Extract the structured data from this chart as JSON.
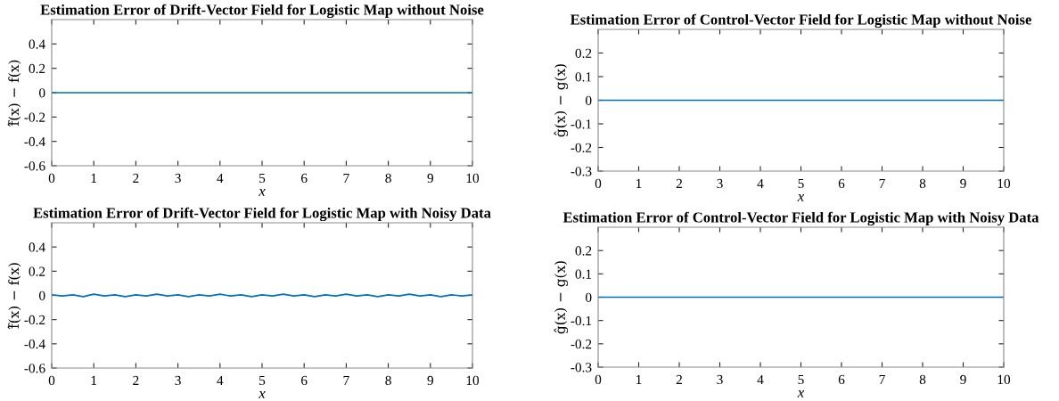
{
  "chart_data": [
    {
      "type": "line",
      "title": "Estimation Error of Drift-Vector Field for Logistic Map without Noise",
      "xlabel": "x",
      "ylabel": "f̂(x) − f(x)",
      "x": [
        0,
        10
      ],
      "series": [
        {
          "color": "#0072bd",
          "values": [
            0,
            0
          ]
        }
      ],
      "xlim": [
        0,
        10
      ],
      "xticks": [
        0,
        1,
        2,
        3,
        4,
        5,
        6,
        7,
        8,
        9,
        10
      ],
      "ylim": [
        -0.6,
        0.6
      ],
      "yticks": [
        -0.6,
        -0.4,
        -0.2,
        0,
        0.2,
        0.4
      ],
      "grid": false
    },
    {
      "type": "line",
      "title": "Estimation Error of Control-Vector Field for Logistic Map without Noise",
      "xlabel": "x",
      "ylabel": "ĝ(x) − g(x)",
      "x": [
        0,
        10
      ],
      "series": [
        {
          "color": "#0072bd",
          "values": [
            0,
            0
          ]
        }
      ],
      "xlim": [
        0,
        10
      ],
      "xticks": [
        0,
        1,
        2,
        3,
        4,
        5,
        6,
        7,
        8,
        9,
        10
      ],
      "ylim": [
        -0.3,
        0.3
      ],
      "yticks": [
        -0.3,
        -0.2,
        -0.1,
        0,
        0.1,
        0.2
      ],
      "grid": false
    },
    {
      "type": "line",
      "title": "Estimation Error of Drift-Vector Field for Logistic Map with Noisy Data",
      "xlabel": "x",
      "ylabel": "f̂(x) − f(x)",
      "x": [
        0,
        0.25,
        0.5,
        0.75,
        1,
        1.25,
        1.5,
        1.75,
        2,
        2.25,
        2.5,
        2.75,
        3,
        3.25,
        3.5,
        3.75,
        4,
        4.25,
        4.5,
        4.75,
        5,
        5.25,
        5.5,
        5.75,
        6,
        6.25,
        6.5,
        6.75,
        7,
        7.25,
        7.5,
        7.75,
        8,
        8.25,
        8.5,
        8.75,
        9,
        9.25,
        9.5,
        9.75,
        10
      ],
      "series": [
        {
          "color": "#0072bd",
          "values": [
            0.005,
            -0.005,
            0.005,
            -0.01,
            0.01,
            -0.005,
            0.005,
            -0.01,
            0.005,
            -0.005,
            0.01,
            -0.005,
            0.005,
            -0.01,
            0.005,
            -0.005,
            0.01,
            -0.005,
            0.005,
            -0.01,
            0.005,
            -0.005,
            0.01,
            -0.005,
            0.005,
            -0.01,
            0.005,
            -0.005,
            0.01,
            -0.005,
            0.005,
            -0.01,
            0.005,
            -0.005,
            0.01,
            -0.005,
            0.005,
            -0.01,
            0.005,
            -0.005,
            0.005
          ]
        }
      ],
      "xlim": [
        0,
        10
      ],
      "xticks": [
        0,
        1,
        2,
        3,
        4,
        5,
        6,
        7,
        8,
        9,
        10
      ],
      "ylim": [
        -0.6,
        0.6
      ],
      "yticks": [
        -0.6,
        -0.4,
        -0.2,
        0,
        0.2,
        0.4
      ],
      "grid": false
    },
    {
      "type": "line",
      "title": "Estimation Error of Control-Vector Field for Logistic Map with Noisy Data",
      "xlabel": "x",
      "ylabel": "ĝ(x) − g(x)",
      "x": [
        0,
        10
      ],
      "series": [
        {
          "color": "#0072bd",
          "values": [
            0,
            0
          ]
        }
      ],
      "xlim": [
        0,
        10
      ],
      "xticks": [
        0,
        1,
        2,
        3,
        4,
        5,
        6,
        7,
        8,
        9,
        10
      ],
      "ylim": [
        -0.3,
        0.3
      ],
      "yticks": [
        -0.3,
        -0.2,
        -0.1,
        0,
        0.1,
        0.2
      ],
      "grid": false
    }
  ]
}
